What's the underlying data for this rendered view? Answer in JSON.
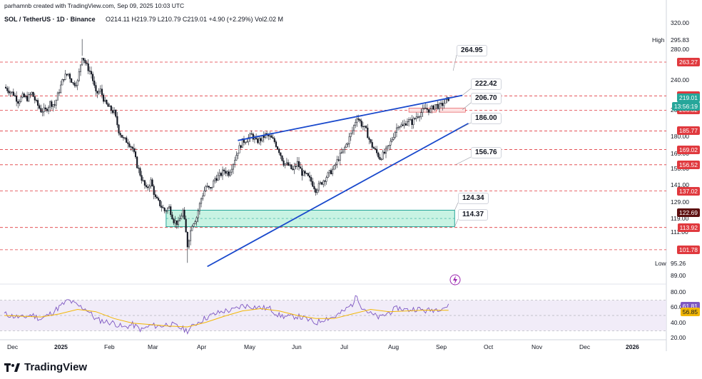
{
  "header": {
    "author_line": "parhamnb created with TradingView.com, Sep 09, 2025 10:03 UTC",
    "symbol": "SOL / TetherUS · 1D · Binance",
    "ohlc": "O214.11  H219.79  L210.79  C219.01  +4.90 (+2.29%)  Vol2.02 M"
  },
  "chart_data": {
    "type": "candlestick",
    "symbol": "SOL / TetherUS",
    "interval": "1D",
    "exchange": "Binance",
    "ohlc": {
      "open": 214.11,
      "high": 219.79,
      "low": 210.79,
      "close": 219.01,
      "change": 4.9,
      "change_pct": 2.29,
      "volume": "2.02 M"
    },
    "price_axis_ticks": [
      "320.00",
      "280.00",
      "240.00",
      "206.00",
      "180.00",
      "165.00",
      "153.00",
      "141.00",
      "129.00",
      "119.00",
      "111.00",
      "89.00"
    ],
    "price_axis_tick_values": [
      320,
      280,
      240,
      206,
      180,
      165,
      153,
      141,
      129,
      119,
      111,
      89
    ],
    "time_axis": [
      "Dec",
      "2025",
      "Feb",
      "Mar",
      "Apr",
      "May",
      "Jun",
      "Jul",
      "Aug",
      "Sep",
      "Oct",
      "Nov",
      "Dec",
      "2026"
    ],
    "high_label": "High",
    "high_value": "295.83",
    "low_label": "Low",
    "low_value": "95.26",
    "horizontal_levels": [
      {
        "value": 263.27,
        "label": "263.27"
      },
      {
        "value": 221.86,
        "label": "221.86"
      },
      {
        "value": 206.32,
        "label": "206.32"
      },
      {
        "value": 185.77,
        "label": "185.77"
      },
      {
        "value": 169.02,
        "label": "169.02"
      },
      {
        "value": 156.52,
        "label": "156.52"
      },
      {
        "value": 137.02,
        "label": "137.02"
      },
      {
        "value": 113.92,
        "label": "113.92"
      },
      {
        "value": 101.78,
        "label": "101.78"
      }
    ],
    "annotations": [
      "264.95",
      "222.42",
      "206.70",
      "186.00",
      "156.76",
      "124.34",
      "114.37"
    ],
    "last_price": "219.01",
    "countdown": "13:56:19",
    "current_level_tag": "122.69",
    "rsi": {
      "ticks": [
        "80.00",
        "60.00",
        "40.00",
        "20.00"
      ],
      "tick_values": [
        80,
        60,
        40,
        20
      ],
      "rsi_value": "61.81",
      "ma_value": "56.85",
      "band_upper": 70,
      "band_lower": 30
    },
    "colors": {
      "up": "#26a69a",
      "down": "#ef5350",
      "candle": "#131722",
      "level": "#e0393e",
      "trend": "#1848cc",
      "zone": "#c8f3e3",
      "rsi": "#7e57c2",
      "rsi_ma": "#f2b705"
    },
    "close_series": [
      [
        0,
        232
      ],
      [
        3,
        228
      ],
      [
        6,
        224
      ],
      [
        9,
        216
      ],
      [
        12,
        221
      ],
      [
        15,
        219
      ],
      [
        18,
        225
      ],
      [
        21,
        214
      ],
      [
        24,
        206
      ],
      [
        27,
        206
      ],
      [
        30,
        214
      ],
      [
        33,
        212
      ],
      [
        36,
        228
      ],
      [
        39,
        244
      ],
      [
        42,
        248
      ],
      [
        45,
        236
      ],
      [
        48,
        238
      ],
      [
        51,
        272
      ],
      [
        54,
        258
      ],
      [
        57,
        248
      ],
      [
        60,
        224
      ],
      [
        63,
        228
      ],
      [
        66,
        214
      ],
      [
        69,
        208
      ],
      [
        72,
        204
      ],
      [
        75,
        186
      ],
      [
        78,
        178
      ],
      [
        81,
        176
      ],
      [
        84,
        170
      ],
      [
        87,
        156
      ],
      [
        90,
        146
      ],
      [
        93,
        138
      ],
      [
        96,
        144
      ],
      [
        99,
        132
      ],
      [
        102,
        128
      ],
      [
        105,
        124
      ],
      [
        108,
        126
      ],
      [
        111,
        118
      ],
      [
        114,
        116
      ],
      [
        117,
        124
      ],
      [
        120,
        104
      ],
      [
        123,
        116
      ],
      [
        126,
        120
      ],
      [
        129,
        132
      ],
      [
        132,
        140
      ],
      [
        135,
        138
      ],
      [
        138,
        146
      ],
      [
        141,
        148
      ],
      [
        144,
        152
      ],
      [
        147,
        150
      ],
      [
        150,
        158
      ],
      [
        153,
        168
      ],
      [
        156,
        176
      ],
      [
        159,
        178
      ],
      [
        162,
        182
      ],
      [
        165,
        176
      ],
      [
        168,
        178
      ],
      [
        171,
        182
      ],
      [
        174,
        180
      ],
      [
        177,
        176
      ],
      [
        180,
        168
      ],
      [
        183,
        158
      ],
      [
        186,
        156
      ],
      [
        189,
        152
      ],
      [
        192,
        158
      ],
      [
        195,
        150
      ],
      [
        198,
        148
      ],
      [
        201,
        144
      ],
      [
        204,
        138
      ],
      [
        207,
        142
      ],
      [
        210,
        146
      ],
      [
        213,
        150
      ],
      [
        216,
        154
      ],
      [
        219,
        162
      ],
      [
        222,
        168
      ],
      [
        225,
        176
      ],
      [
        228,
        186
      ],
      [
        231,
        200
      ],
      [
        234,
        192
      ],
      [
        237,
        186
      ],
      [
        240,
        174
      ],
      [
        243,
        168
      ],
      [
        246,
        162
      ],
      [
        249,
        166
      ],
      [
        252,
        172
      ],
      [
        255,
        182
      ],
      [
        258,
        192
      ],
      [
        261,
        190
      ],
      [
        264,
        196
      ],
      [
        267,
        194
      ],
      [
        270,
        200
      ],
      [
        273,
        204
      ],
      [
        276,
        208
      ],
      [
        279,
        206
      ],
      [
        282,
        212
      ],
      [
        285,
        210
      ],
      [
        288,
        214
      ],
      [
        291,
        219.01
      ]
    ],
    "rsi_series": [
      [
        0,
        52
      ],
      [
        6,
        49
      ],
      [
        12,
        47
      ],
      [
        18,
        51
      ],
      [
        24,
        45
      ],
      [
        30,
        52
      ],
      [
        36,
        61
      ],
      [
        42,
        70
      ],
      [
        48,
        63
      ],
      [
        54,
        58
      ],
      [
        60,
        45
      ],
      [
        66,
        42
      ],
      [
        72,
        40
      ],
      [
        78,
        34
      ],
      [
        84,
        38
      ],
      [
        90,
        31
      ],
      [
        96,
        37
      ],
      [
        102,
        36
      ],
      [
        108,
        39
      ],
      [
        114,
        35
      ],
      [
        120,
        30
      ],
      [
        126,
        40
      ],
      [
        132,
        47
      ],
      [
        138,
        52
      ],
      [
        144,
        56
      ],
      [
        150,
        57
      ],
      [
        156,
        63
      ],
      [
        162,
        62
      ],
      [
        168,
        60
      ],
      [
        174,
        59
      ],
      [
        180,
        50
      ],
      [
        186,
        48
      ],
      [
        192,
        49
      ],
      [
        198,
        45
      ],
      [
        204,
        40
      ],
      [
        210,
        46
      ],
      [
        216,
        48
      ],
      [
        222,
        55
      ],
      [
        228,
        65
      ],
      [
        231,
        76
      ],
      [
        234,
        62
      ],
      [
        240,
        52
      ],
      [
        246,
        47
      ],
      [
        252,
        54
      ],
      [
        258,
        60
      ],
      [
        264,
        57
      ],
      [
        270,
        59
      ],
      [
        276,
        56
      ],
      [
        282,
        58
      ],
      [
        288,
        61
      ],
      [
        291,
        61.81
      ]
    ],
    "rsi_ma_series": [
      [
        0,
        50
      ],
      [
        12,
        49
      ],
      [
        24,
        48
      ],
      [
        36,
        52
      ],
      [
        48,
        58
      ],
      [
        60,
        55
      ],
      [
        72,
        46
      ],
      [
        84,
        40
      ],
      [
        96,
        38
      ],
      [
        108,
        36
      ],
      [
        120,
        35
      ],
      [
        132,
        41
      ],
      [
        144,
        49
      ],
      [
        156,
        56
      ],
      [
        168,
        59
      ],
      [
        180,
        56
      ],
      [
        192,
        50
      ],
      [
        204,
        46
      ],
      [
        216,
        46
      ],
      [
        228,
        52
      ],
      [
        240,
        58
      ],
      [
        252,
        55
      ],
      [
        264,
        56
      ],
      [
        276,
        57
      ],
      [
        291,
        56.85
      ]
    ]
  },
  "footer": {
    "brand": "TradingView"
  }
}
